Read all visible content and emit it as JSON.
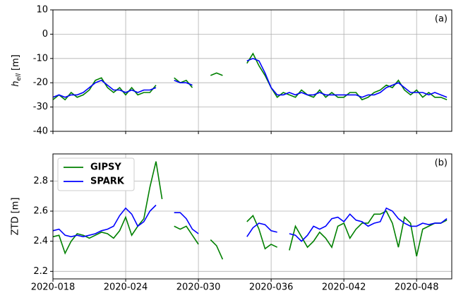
{
  "chart_data": [
    {
      "type": "line",
      "panel_label": "(a)",
      "y_label": {
        "symbol": "h",
        "subscript": "ell",
        "unit": "[m]"
      },
      "x": [
        18,
        18.5,
        19,
        19.5,
        20,
        20.5,
        21,
        21.5,
        22,
        22.5,
        23,
        23.5,
        24,
        24.5,
        25,
        25.5,
        26,
        26.5,
        27,
        27.5,
        28,
        28.5,
        29,
        29.5,
        30,
        30.5,
        31,
        31.5,
        32,
        32.5,
        33,
        33.5,
        34,
        34.5,
        35,
        35.5,
        36,
        36.5,
        37,
        37.5,
        38,
        38.5,
        39,
        39.5,
        40,
        40.5,
        41,
        41.5,
        42,
        42.5,
        43,
        43.5,
        44,
        44.5,
        45,
        45.5,
        46,
        46.5,
        47,
        47.5,
        48,
        48.5,
        49,
        49.5,
        50,
        50.5
      ],
      "series": [
        {
          "color": "#008000",
          "values": [
            -27,
            -25,
            -27,
            -24,
            -26,
            -25,
            -23,
            -19,
            -18,
            -22,
            -24,
            -22,
            -25,
            -22,
            -25,
            -24,
            -24,
            -21,
            null,
            null,
            -18,
            -20,
            -19,
            -22,
            null,
            null,
            -17,
            -16,
            -17,
            null,
            null,
            null,
            -12,
            -8,
            -13,
            -17,
            -22,
            -26,
            -24,
            -25,
            -26,
            -23,
            -25,
            -26,
            -23,
            -26,
            -24,
            -26,
            -26,
            -24,
            -24,
            -27,
            -26,
            -24,
            -23,
            -21,
            -22,
            -19,
            -23,
            -25,
            -23,
            -26,
            -24,
            -26,
            -26,
            -27
          ]
        },
        {
          "color": "#0000ff",
          "values": [
            -26,
            -25,
            -26,
            -25,
            -25,
            -24,
            -22,
            -20,
            -19,
            -21,
            -23,
            -23,
            -24,
            -23,
            -24,
            -23,
            -23,
            -22,
            null,
            null,
            -19,
            -20,
            -20,
            -21,
            null,
            null,
            null,
            null,
            null,
            null,
            null,
            null,
            -11,
            -10,
            -11,
            -16,
            -22,
            -25,
            -25,
            -24,
            -25,
            -24,
            -25,
            -25,
            -24,
            -25,
            -25,
            -25,
            -25,
            -25,
            -25,
            -26,
            -25,
            -25,
            -24,
            -22,
            -21,
            -20,
            -22,
            -24,
            -24,
            -24,
            -25,
            -24,
            -25,
            -26
          ]
        }
      ],
      "xlim": [
        18,
        50.9
      ],
      "xticks": [
        18,
        24,
        30,
        36,
        42,
        48
      ],
      "ylim": [
        -40,
        10
      ],
      "yticks": [
        10,
        0,
        -10,
        -20,
        -30,
        -40
      ],
      "grid": true
    },
    {
      "type": "line",
      "panel_label": "(b)",
      "y_label": "ZTD [m]",
      "x": [
        18,
        18.5,
        19,
        19.5,
        20,
        20.5,
        21,
        21.5,
        22,
        22.5,
        23,
        23.5,
        24,
        24.5,
        25,
        25.5,
        26,
        26.5,
        27,
        27.5,
        28,
        28.5,
        29,
        29.5,
        30,
        30.5,
        31,
        31.5,
        32,
        32.5,
        33,
        33.5,
        34,
        34.5,
        35,
        35.5,
        36,
        36.5,
        37,
        37.5,
        38,
        38.5,
        39,
        39.5,
        40,
        40.5,
        41,
        41.5,
        42,
        42.5,
        43,
        43.5,
        44,
        44.5,
        45,
        45.5,
        46,
        46.5,
        47,
        47.5,
        48,
        48.5,
        49,
        49.5,
        50,
        50.5
      ],
      "series": [
        {
          "name": "GIPSY",
          "color": "#008000",
          "values": [
            2.43,
            2.44,
            2.32,
            2.4,
            2.45,
            2.44,
            2.42,
            2.44,
            2.46,
            2.45,
            2.42,
            2.47,
            2.56,
            2.44,
            2.5,
            2.55,
            2.76,
            2.93,
            2.68,
            null,
            2.5,
            2.48,
            2.5,
            2.44,
            2.38,
            null,
            2.41,
            2.37,
            2.28,
            null,
            null,
            null,
            2.53,
            2.57,
            2.48,
            2.35,
            2.38,
            2.36,
            null,
            2.34,
            2.5,
            2.43,
            2.36,
            2.4,
            2.46,
            2.42,
            2.36,
            2.5,
            2.52,
            2.42,
            2.48,
            2.52,
            2.52,
            2.58,
            2.58,
            2.6,
            2.52,
            2.36,
            2.56,
            2.52,
            2.3,
            2.48,
            2.5,
            2.52,
            2.52,
            2.54
          ]
        },
        {
          "name": "SPARK",
          "color": "#0000ff",
          "values": [
            2.47,
            2.48,
            2.44,
            2.43,
            2.44,
            2.43,
            2.44,
            2.45,
            2.47,
            2.48,
            2.5,
            2.57,
            2.62,
            2.58,
            2.5,
            2.53,
            2.6,
            2.64,
            null,
            null,
            2.59,
            2.59,
            2.55,
            2.48,
            2.45,
            null,
            null,
            null,
            null,
            null,
            null,
            null,
            2.43,
            2.49,
            2.52,
            2.51,
            2.47,
            2.46,
            null,
            2.45,
            2.44,
            2.4,
            2.44,
            2.5,
            2.48,
            2.5,
            2.55,
            2.56,
            2.53,
            2.58,
            2.54,
            2.53,
            2.5,
            2.52,
            2.53,
            2.62,
            2.6,
            2.55,
            2.52,
            2.5,
            2.5,
            2.52,
            2.51,
            2.52,
            2.52,
            2.55
          ]
        }
      ],
      "xlim": [
        18,
        50.9
      ],
      "xticks": [
        {
          "value": 18,
          "label": "2020-018"
        },
        {
          "value": 24,
          "label": "2020-024"
        },
        {
          "value": 30,
          "label": "2020-030"
        },
        {
          "value": 36,
          "label": "2020-036"
        },
        {
          "value": 42,
          "label": "2020-042"
        },
        {
          "value": 48,
          "label": "2020-048"
        }
      ],
      "ylim": [
        2.15,
        2.98
      ],
      "yticks": [
        2.2,
        2.4,
        2.6,
        2.8
      ],
      "grid": true,
      "legend": "upper left"
    }
  ]
}
